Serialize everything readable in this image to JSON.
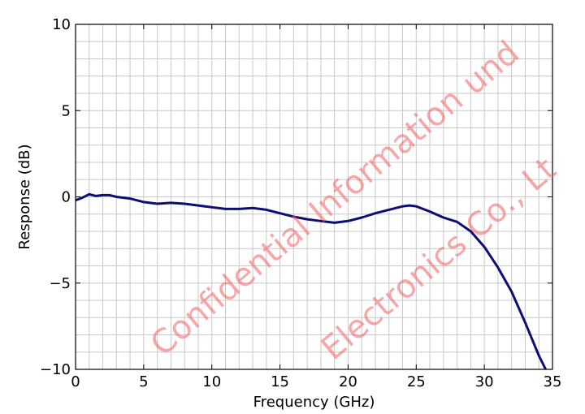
{
  "chart_data": {
    "type": "line",
    "title": "",
    "xlabel": "Frequency (GHz)",
    "ylabel": "Response (dB)",
    "xlim": [
      0,
      35
    ],
    "ylim": [
      -10,
      10
    ],
    "xticks": [
      "0",
      "5",
      "10",
      "15",
      "20",
      "25",
      "30",
      "35"
    ],
    "yticks": [
      "10",
      "5",
      "0",
      "−5",
      "−10"
    ],
    "xtick_values": [
      0,
      5,
      10,
      15,
      20,
      25,
      30,
      35
    ],
    "ytick_values": [
      10,
      5,
      0,
      -5,
      -10
    ],
    "grid": true,
    "grid_minor_step_x": 1,
    "grid_minor_step_y": 1,
    "series": [
      {
        "color": "#0d0d73",
        "x": [
          0,
          0.5,
          1,
          1.5,
          2,
          2.5,
          3,
          4,
          5,
          6,
          7,
          8,
          9,
          10,
          11,
          12,
          13,
          14,
          15,
          16,
          17,
          18,
          19,
          20,
          21,
          22,
          23,
          24,
          24.5,
          25,
          26,
          27,
          28,
          29,
          30,
          31,
          32,
          33,
          34,
          34.5
        ],
        "y": [
          -0.2,
          -0.05,
          0.15,
          0.05,
          0.1,
          0.1,
          0.0,
          -0.1,
          -0.3,
          -0.4,
          -0.35,
          -0.4,
          -0.5,
          -0.6,
          -0.7,
          -0.7,
          -0.65,
          -0.75,
          -0.95,
          -1.15,
          -1.3,
          -1.4,
          -1.5,
          -1.4,
          -1.2,
          -0.95,
          -0.75,
          -0.55,
          -0.5,
          -0.55,
          -0.85,
          -1.2,
          -1.45,
          -2.0,
          -2.9,
          -4.1,
          -5.5,
          -7.3,
          -9.2,
          -10.0
        ]
      }
    ]
  },
  "watermark": {
    "lines": [
      "Confidential Information und",
      "Electronics Co., Lt"
    ],
    "color": "#f26060"
  }
}
